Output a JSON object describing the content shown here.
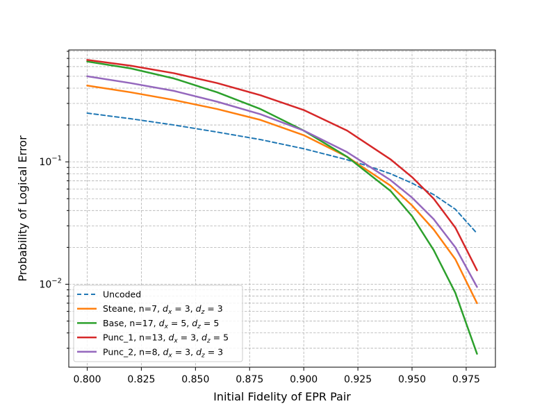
{
  "chart_data": {
    "type": "line",
    "title": "",
    "xlabel": "Initial Fidelity of EPR Pair",
    "ylabel": "Probability of Logical Error",
    "xlim": [
      0.7915,
      0.9885
    ],
    "ylim": [
      0.0021,
      0.82
    ],
    "yscale": "log",
    "grid": true,
    "grid_style": "dashed",
    "legend_position": "lower-left",
    "x_ticks": [
      "0.800",
      "0.825",
      "0.850",
      "0.875",
      "0.900",
      "0.925",
      "0.950",
      "0.975"
    ],
    "y_tick_labels": [
      {
        "base": "10",
        "exp": "−1",
        "value": 0.1
      },
      {
        "base": "10",
        "exp": "−2",
        "value": 0.01
      }
    ],
    "series": [
      {
        "name": "Uncoded",
        "label_parts": [
          {
            "t": "Uncoded"
          }
        ],
        "color": "#1f77b4",
        "dashed": true,
        "x": [
          0.8,
          0.82,
          0.84,
          0.86,
          0.88,
          0.9,
          0.92,
          0.93,
          0.94,
          0.95,
          0.96,
          0.97,
          0.98
        ],
        "y": [
          0.25,
          0.225,
          0.2,
          0.175,
          0.152,
          0.128,
          0.104,
          0.092,
          0.08,
          0.067,
          0.054,
          0.041,
          0.026
        ]
      },
      {
        "name": "Steane",
        "label_parts": [
          {
            "t": "Steane, n=7, "
          },
          {
            "t": "d",
            "i": true
          },
          {
            "t": "x",
            "sub": true
          },
          {
            "t": " = 3, "
          },
          {
            "t": "d",
            "i": true
          },
          {
            "t": "z",
            "sub": true
          },
          {
            "t": " = 3"
          }
        ],
        "color": "#ff7f0e",
        "dashed": false,
        "x": [
          0.8,
          0.82,
          0.84,
          0.86,
          0.88,
          0.9,
          0.92,
          0.94,
          0.95,
          0.96,
          0.97,
          0.98
        ],
        "y": [
          0.42,
          0.37,
          0.32,
          0.27,
          0.22,
          0.165,
          0.11,
          0.064,
          0.044,
          0.028,
          0.016,
          0.007
        ]
      },
      {
        "name": "Base",
        "label_parts": [
          {
            "t": "Base, n=17, "
          },
          {
            "t": "d",
            "i": true
          },
          {
            "t": "x",
            "sub": true
          },
          {
            "t": " = 5, "
          },
          {
            "t": "d",
            "i": true
          },
          {
            "t": "z",
            "sub": true
          },
          {
            "t": " = 5"
          }
        ],
        "color": "#2ca02c",
        "dashed": false,
        "x": [
          0.8,
          0.82,
          0.84,
          0.86,
          0.88,
          0.9,
          0.92,
          0.94,
          0.95,
          0.96,
          0.97,
          0.98
        ],
        "y": [
          0.66,
          0.58,
          0.48,
          0.37,
          0.27,
          0.18,
          0.11,
          0.058,
          0.036,
          0.019,
          0.0085,
          0.0027
        ]
      },
      {
        "name": "Punc_1",
        "label_parts": [
          {
            "t": "Punc_1, n=13, "
          },
          {
            "t": "d",
            "i": true
          },
          {
            "t": "x",
            "sub": true
          },
          {
            "t": " = 3, "
          },
          {
            "t": "d",
            "i": true
          },
          {
            "t": "z",
            "sub": true
          },
          {
            "t": " = 5"
          }
        ],
        "color": "#d62728",
        "dashed": false,
        "x": [
          0.8,
          0.82,
          0.84,
          0.86,
          0.88,
          0.9,
          0.92,
          0.94,
          0.95,
          0.96,
          0.97,
          0.98
        ],
        "y": [
          0.68,
          0.61,
          0.53,
          0.44,
          0.35,
          0.265,
          0.18,
          0.105,
          0.075,
          0.05,
          0.029,
          0.013
        ]
      },
      {
        "name": "Punc_2",
        "label_parts": [
          {
            "t": "Punc_2, n=8, "
          },
          {
            "t": "d",
            "i": true
          },
          {
            "t": "x",
            "sub": true
          },
          {
            "t": " = 3, "
          },
          {
            "t": "d",
            "i": true
          },
          {
            "t": "z",
            "sub": true
          },
          {
            "t": " = 3"
          }
        ],
        "color": "#9467bd",
        "dashed": false,
        "x": [
          0.8,
          0.82,
          0.84,
          0.86,
          0.88,
          0.9,
          0.92,
          0.94,
          0.95,
          0.96,
          0.97,
          0.98
        ],
        "y": [
          0.5,
          0.44,
          0.38,
          0.31,
          0.245,
          0.18,
          0.12,
          0.071,
          0.051,
          0.034,
          0.02,
          0.0095
        ]
      }
    ]
  }
}
